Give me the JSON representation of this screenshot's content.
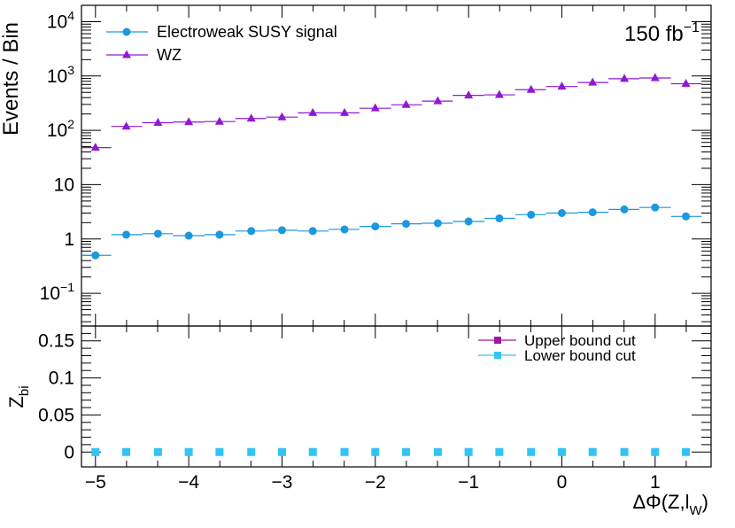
{
  "chart_data": [
    {
      "panel": "top",
      "type": "scatter",
      "ylabel": "Events / Bin",
      "yscale": "log",
      "ylim": [
        0.025,
        20000
      ],
      "annotation": {
        "base": "150 fb",
        "sup": "−1"
      },
      "y_tick_labels": [
        {
          "value": 10000,
          "base": "10",
          "sup": "4"
        },
        {
          "value": 1000,
          "base": "10",
          "sup": "3"
        },
        {
          "value": 100,
          "base": "10",
          "sup": "2"
        },
        {
          "value": 10,
          "base": "10",
          "sup": ""
        },
        {
          "value": 1,
          "base": "1",
          "sup": ""
        },
        {
          "value": 0.1,
          "base": "10",
          "sup": "−1"
        }
      ],
      "x": [
        -5.0,
        -4.67,
        -4.33,
        -4.0,
        -3.67,
        -3.33,
        -3.0,
        -2.67,
        -2.33,
        -2.0,
        -1.67,
        -1.33,
        -1.0,
        -0.67,
        -0.33,
        0.0,
        0.33,
        0.67,
        1.0,
        1.33
      ],
      "bin_edges": [
        -5.15,
        -4.83,
        -4.5,
        -4.17,
        -3.83,
        -3.5,
        -3.17,
        -2.83,
        -2.5,
        -2.17,
        -1.83,
        -1.5,
        -1.17,
        -0.83,
        -0.5,
        -0.17,
        0.17,
        0.5,
        0.83,
        1.17,
        1.5
      ],
      "series": [
        {
          "name": "Electroweak SUSY signal",
          "color": "#1b98e0",
          "marker": "circle",
          "values": [
            0.5,
            1.2,
            1.25,
            1.15,
            1.2,
            1.4,
            1.45,
            1.4,
            1.5,
            1.7,
            1.9,
            1.95,
            2.1,
            2.4,
            2.8,
            3.0,
            3.1,
            3.5,
            3.8,
            2.6
          ]
        },
        {
          "name": "WZ",
          "color": "#8f19d6",
          "marker": "triangle",
          "values": [
            48,
            118,
            138,
            142,
            145,
            165,
            175,
            210,
            210,
            255,
            295,
            345,
            440,
            450,
            560,
            640,
            760,
            890,
            920,
            720
          ]
        }
      ]
    },
    {
      "panel": "bottom",
      "type": "scatter",
      "ylabel": "Z",
      "ylabel_sub": "bi",
      "xlabel_parts": {
        "pre": "ΔΦ(Z,l",
        "sub": "W",
        "post": ")"
      },
      "xlim": [
        -5.15,
        1.6
      ],
      "ylim": [
        -0.02,
        0.17
      ],
      "x_ticks": [
        {
          "value": -5,
          "label": "−5"
        },
        {
          "value": -4,
          "label": "−4"
        },
        {
          "value": -3,
          "label": "−3"
        },
        {
          "value": -2,
          "label": "−2"
        },
        {
          "value": -1,
          "label": "−1"
        },
        {
          "value": 0,
          "label": "0"
        },
        {
          "value": 1,
          "label": "1"
        }
      ],
      "y_ticks": [
        {
          "value": 0,
          "label": "0"
        },
        {
          "value": 0.05,
          "label": "0.05"
        },
        {
          "value": 0.1,
          "label": "0.1"
        },
        {
          "value": 0.15,
          "label": "0.15"
        }
      ],
      "x": [
        -5.0,
        -4.67,
        -4.33,
        -4.0,
        -3.67,
        -3.33,
        -3.0,
        -2.67,
        -2.33,
        -2.0,
        -1.67,
        -1.33,
        -1.0,
        -0.67,
        -0.33,
        0.0,
        0.33,
        0.67,
        1.0,
        1.33
      ],
      "series": [
        {
          "name": "Upper bound cut",
          "color": "#a0189e",
          "marker": "square",
          "values": []
        },
        {
          "name": "Lower bound cut",
          "color": "#33c3f5",
          "marker": "square",
          "values": [
            0,
            0,
            0,
            0,
            0,
            0,
            0,
            0,
            0,
            0,
            0,
            0,
            0,
            0,
            0,
            0,
            0,
            0,
            0,
            0
          ]
        }
      ]
    }
  ]
}
